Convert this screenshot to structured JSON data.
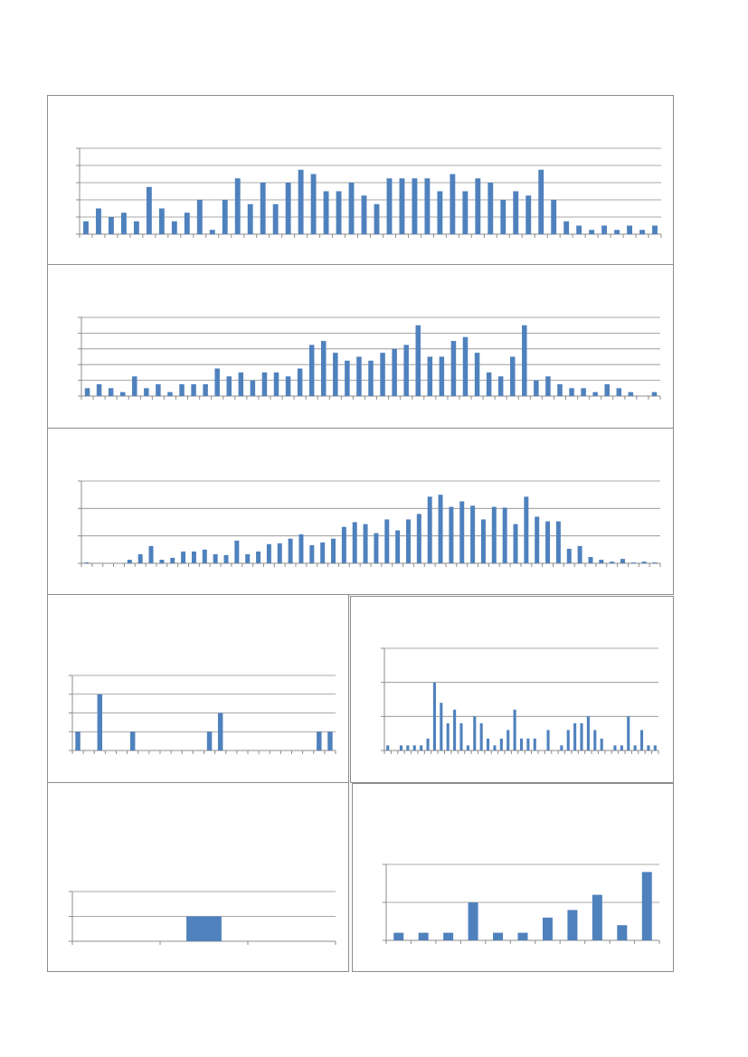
{
  "colors": {
    "bar": "#4f81bd",
    "grid": "#8c8c8c",
    "border": "#8c8c8c"
  },
  "chart_data": [
    {
      "type": "bar",
      "ylim": [
        0,
        20
      ],
      "values": [
        3,
        6,
        4,
        5,
        3,
        11,
        6,
        3,
        5,
        8,
        1,
        8,
        13,
        7,
        12,
        7,
        12,
        15,
        14,
        10,
        10,
        12,
        9,
        7,
        13,
        13,
        13,
        13,
        10,
        14,
        10,
        13,
        12,
        8,
        10,
        9,
        15,
        8,
        3,
        2,
        1,
        2,
        1,
        2,
        1,
        2
      ],
      "grid": true
    },
    {
      "type": "bar",
      "ylim": [
        0,
        20
      ],
      "values": [
        2,
        3,
        2,
        1,
        5,
        2,
        3,
        1,
        3,
        3,
        3,
        7,
        5,
        6,
        4,
        6,
        6,
        5,
        7,
        13,
        14,
        11,
        9,
        10,
        9,
        11,
        12,
        13,
        18,
        10,
        10,
        14,
        15,
        11,
        6,
        5,
        10,
        18,
        4,
        5,
        3,
        2,
        2,
        1,
        3,
        2,
        1,
        0,
        1
      ],
      "grid": true
    },
    {
      "type": "bar",
      "ylim": [
        0,
        30
      ],
      "values": [
        0.3,
        0,
        0,
        0,
        1.3,
        3.3,
        6.3,
        1.3,
        2,
        4.3,
        4.3,
        5,
        3.3,
        3,
        8.3,
        3.3,
        4.3,
        7,
        7.3,
        9,
        10.6,
        6.6,
        7.6,
        9,
        13.3,
        15,
        14.3,
        11,
        16,
        12,
        16,
        18,
        24.3,
        25,
        20.6,
        22.6,
        21,
        16,
        20.6,
        20.3,
        14.3,
        24.3,
        17,
        15.3,
        15.3,
        5.3,
        6.3,
        2.3,
        1.3,
        0.6,
        1.6,
        0.3,
        0.6,
        0.3
      ],
      "grid": true
    },
    {
      "type": "bar",
      "ylim": [
        0,
        4
      ],
      "values": [
        1,
        0,
        3,
        0,
        0,
        1,
        0,
        0,
        0,
        0,
        0,
        0,
        1,
        2,
        0,
        0,
        0,
        0,
        0,
        0,
        0,
        0,
        1,
        1
      ],
      "grid": true
    },
    {
      "type": "bar",
      "ylim": [
        0,
        6
      ],
      "values": [
        0.3,
        0,
        0.3,
        0.3,
        0.3,
        0.3,
        0.7,
        4,
        2.8,
        1.6,
        2.4,
        1.6,
        0.3,
        2,
        1.6,
        0.7,
        0.3,
        0.7,
        1.2,
        2.4,
        0.7,
        0.7,
        0.7,
        0,
        1.2,
        0,
        0.3,
        1.2,
        1.6,
        1.6,
        2,
        1.2,
        0.7,
        0,
        0.3,
        0.3,
        2,
        0.3,
        1.2,
        0.3,
        0.3
      ],
      "grid": true
    },
    {
      "type": "bar",
      "ylim": [
        0,
        2
      ],
      "values": [
        0,
        1,
        0
      ],
      "grid": true
    },
    {
      "type": "bar",
      "ylim": [
        0,
        2
      ],
      "values": [
        0.2,
        0.2,
        0.2,
        1,
        0.2,
        0.2,
        0.6,
        0.8,
        1.2,
        0.4,
        1.8
      ],
      "grid": true
    }
  ]
}
